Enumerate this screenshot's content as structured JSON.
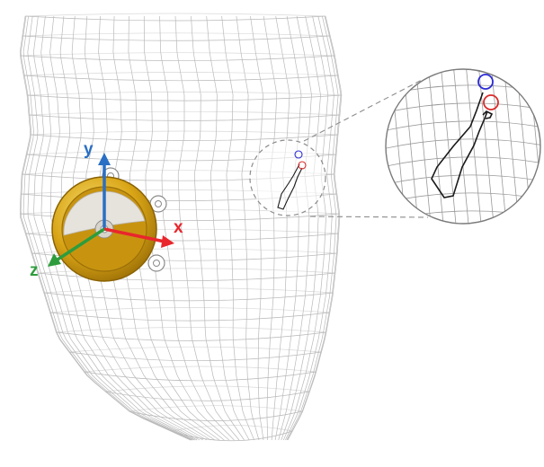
{
  "axes": {
    "x": {
      "label": "x",
      "color": "#e8262c"
    },
    "y": {
      "label": "y",
      "color": "#2a6fc4"
    },
    "z": {
      "label": "z",
      "color": "#2e9c3c"
    }
  },
  "colors": {
    "mesh": "#b9b9b9",
    "trajectory": "#1a1a1a",
    "marker_start": "#2b2bd6",
    "marker_end": "#d92b2b",
    "callout": "#8c8c8c",
    "device_gold": "#d6a21a",
    "device_face": "#e6e2dc"
  },
  "icons": {
    "device": "circular-implant-device-icon",
    "mesh": "wireframe-mesh"
  }
}
